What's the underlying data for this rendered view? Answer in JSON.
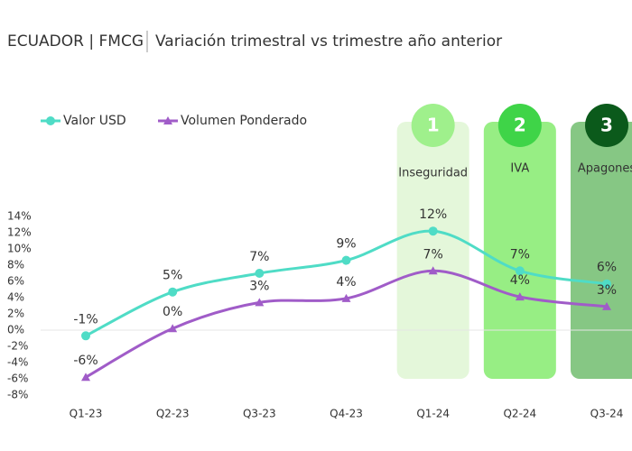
{
  "chart_data": {
    "type": "line",
    "title": "ECUADOR | FMCG",
    "subtitle": "Variación trimestral vs trimestre año anterior",
    "categories": [
      "Q1-23",
      "Q2-23",
      "Q3-23",
      "Q4-23",
      "Q1-24",
      "Q2-24",
      "Q3-24"
    ],
    "series": [
      {
        "name": "Valor USD",
        "color": "#4fdcc6",
        "marker": "circle",
        "values": [
          -0.7,
          4.7,
          7,
          8.6,
          12.2,
          7.3,
          5.7
        ],
        "value_labels": [
          "-1%",
          "5%",
          "7%",
          "9%",
          "12%",
          "7%",
          "6%"
        ]
      },
      {
        "name": "Volumen Ponderado",
        "color": "#a05cc8",
        "marker": "triangle",
        "values": [
          -5.8,
          0.2,
          3.4,
          3.9,
          7.3,
          4.1,
          2.9
        ],
        "value_labels": [
          "-6%",
          "0%",
          "3%",
          "4%",
          "7%",
          "4%",
          "3%"
        ]
      }
    ],
    "ylim": [
      -8,
      14
    ],
    "yticks": [
      {
        "value": -8,
        "label": "-8%"
      },
      {
        "value": -6,
        "label": "-6%"
      },
      {
        "value": -4,
        "label": "-4%"
      },
      {
        "value": -2,
        "label": "-2%"
      },
      {
        "value": 0,
        "label": "0%"
      },
      {
        "value": 2,
        "label": "2%"
      },
      {
        "value": 4,
        "label": "4%"
      },
      {
        "value": 6,
        "label": "6%"
      },
      {
        "value": 8,
        "label": "8%"
      },
      {
        "value": 10,
        "label": "10%"
      },
      {
        "value": 12,
        "label": "12%"
      },
      {
        "value": 14,
        "label": "14%"
      }
    ],
    "highlights": [
      {
        "number": 1,
        "label": "Inseguridad",
        "box_color": "#e4f7da",
        "circle_color": "#9ff08c",
        "text_color": "#ffffff"
      },
      {
        "number": 2,
        "label": "IVA",
        "box_color": "#97ee84",
        "circle_color": "#3fd448",
        "text_color": "#ffffff"
      },
      {
        "number": 3,
        "label": "Apagones",
        "box_color": "#86c784",
        "circle_color": "#0b5a1b",
        "text_color": "#ffffff"
      }
    ]
  }
}
